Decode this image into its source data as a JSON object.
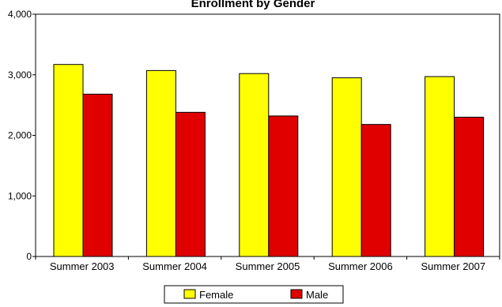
{
  "chart_data": {
    "type": "bar",
    "title": "Enrollment by Gender",
    "xlabel": "",
    "ylabel": "",
    "categories": [
      "Summer 2003",
      "Summer 2004",
      "Summer 2005",
      "Summer 2006",
      "Summer 2007"
    ],
    "series": [
      {
        "name": "Female",
        "values": [
          3170,
          3070,
          3020,
          2950,
          2970
        ],
        "color": "#ffff00"
      },
      {
        "name": "Male",
        "values": [
          2680,
          2380,
          2320,
          2180,
          2300
        ],
        "color": "#e00000"
      }
    ],
    "ylim": [
      0,
      4000
    ],
    "yticks": [
      0,
      1000,
      2000,
      3000,
      4000
    ],
    "ytick_labels": [
      "0",
      "1,000",
      "2,000",
      "3,000",
      "4,000"
    ],
    "grid": false,
    "legend_position": "bottom-center"
  }
}
